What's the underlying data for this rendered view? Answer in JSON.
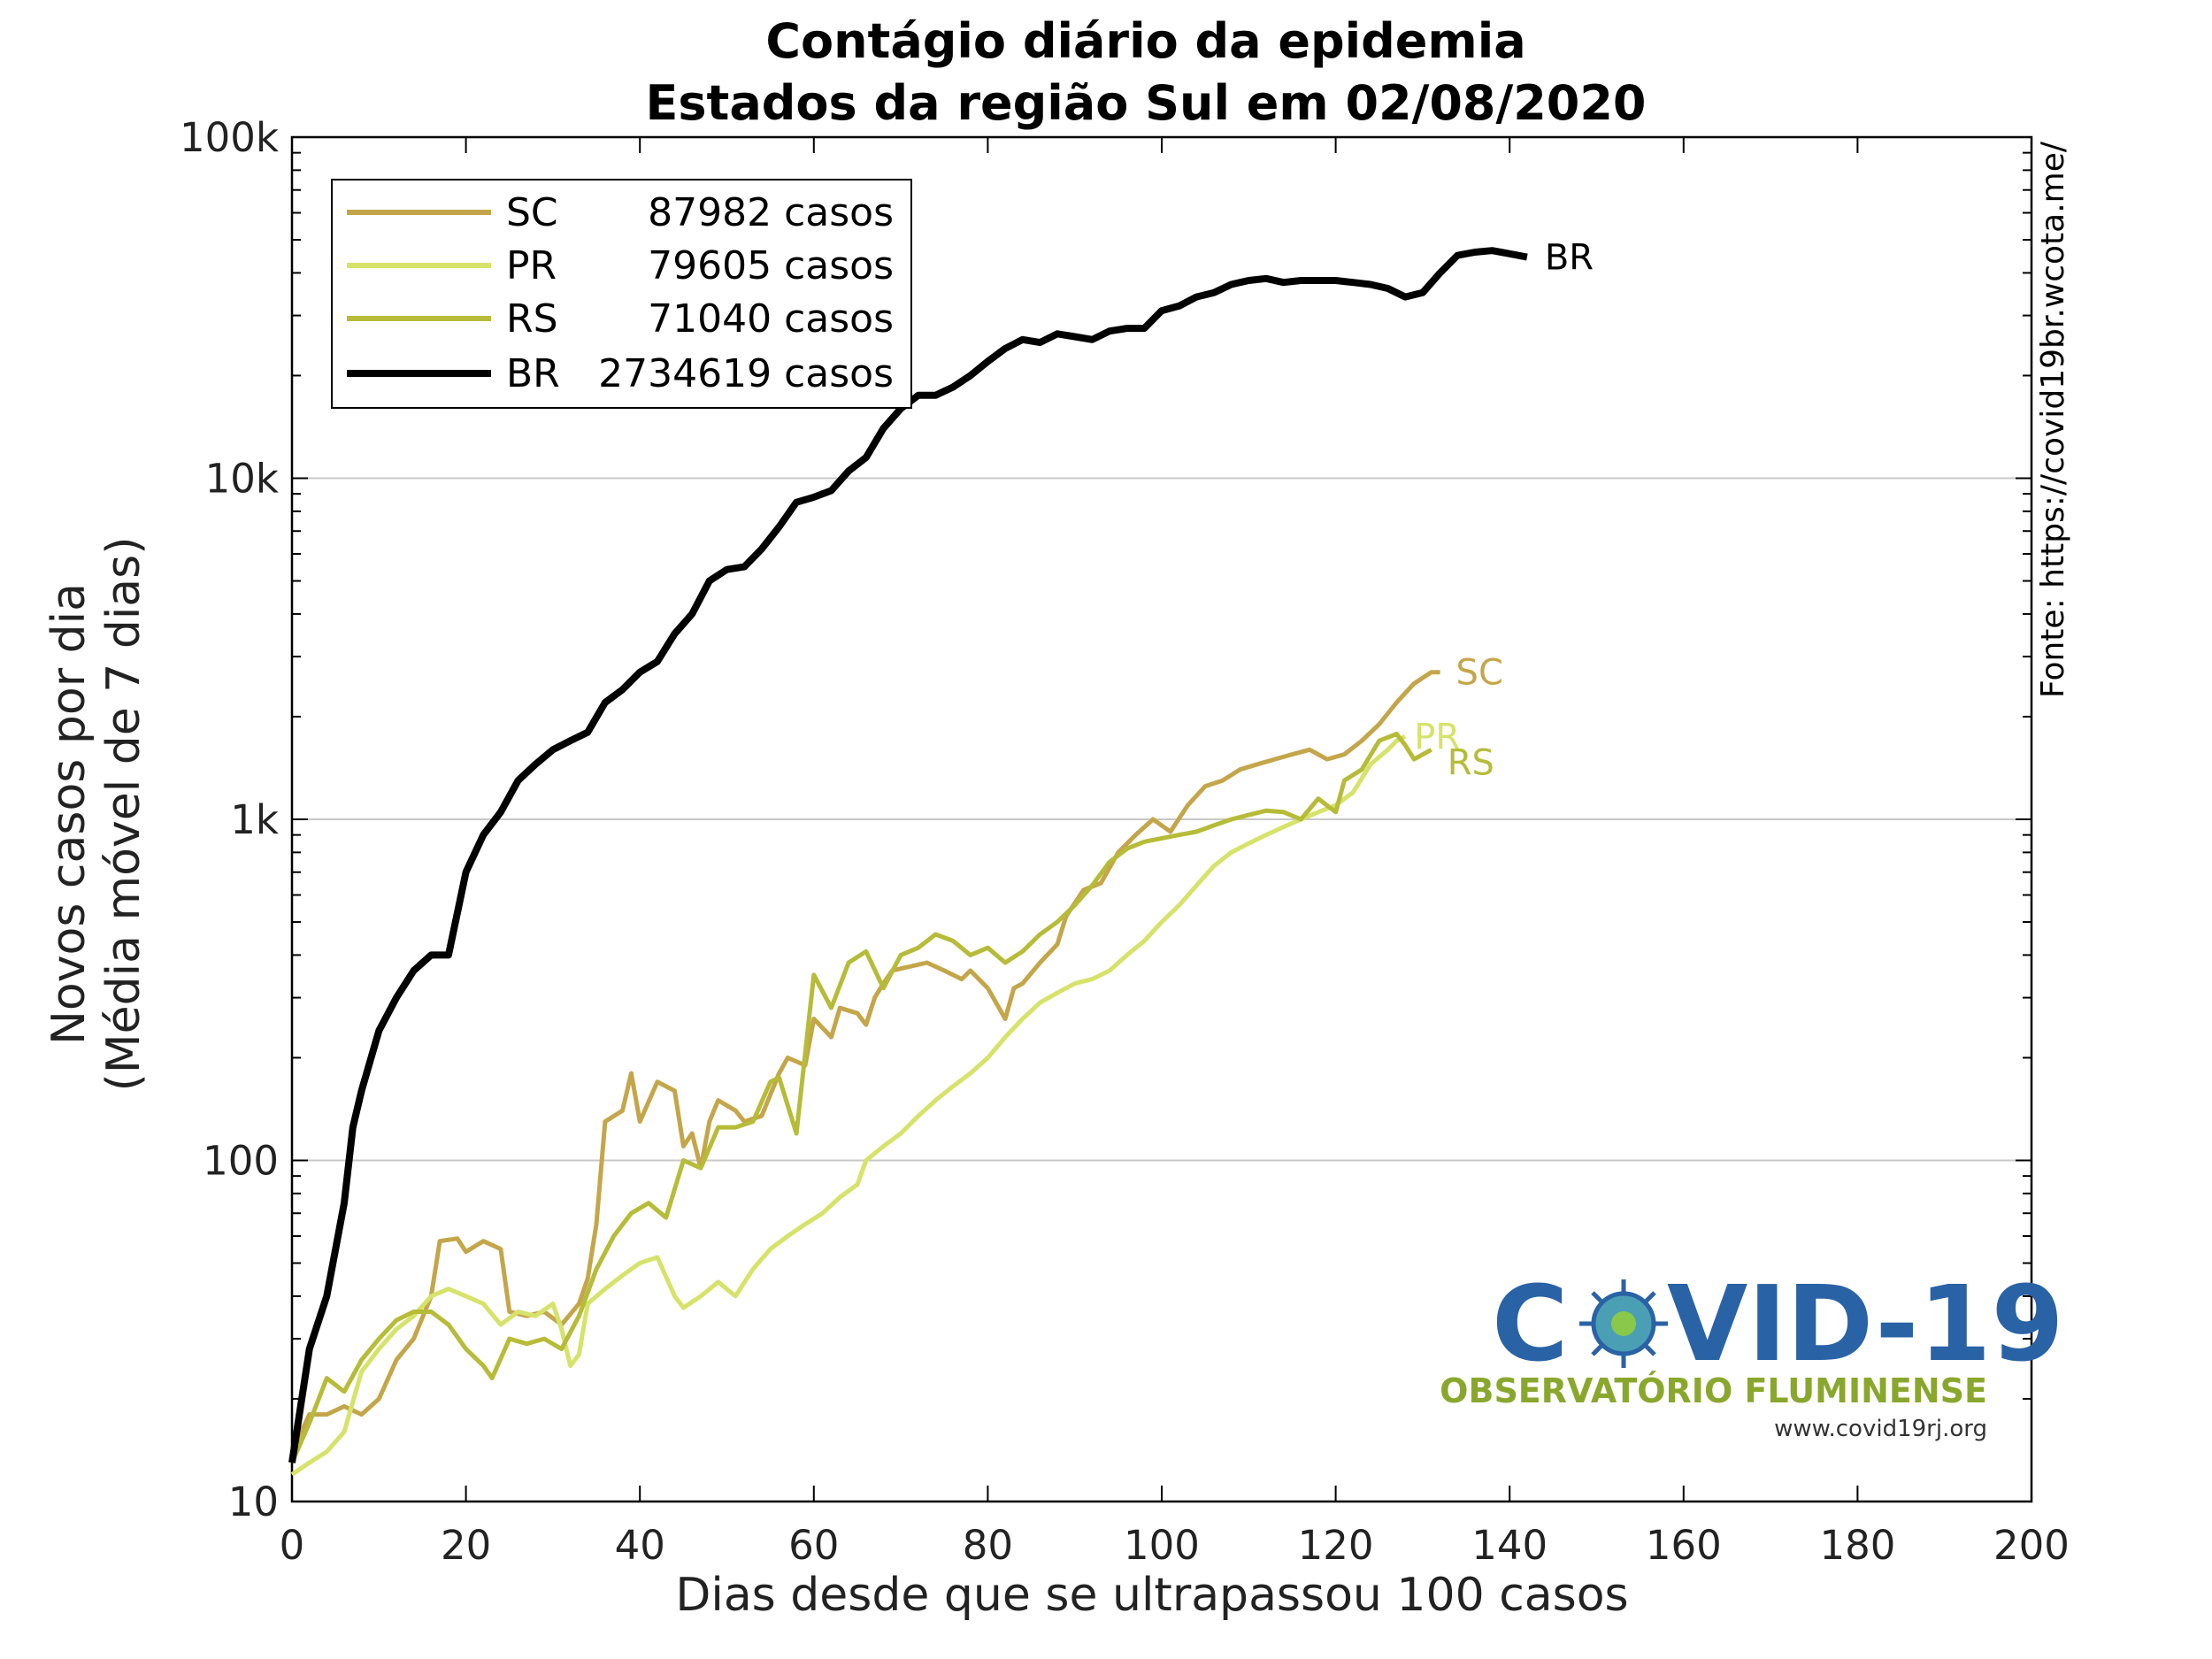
{
  "chart_data": {
    "type": "line",
    "title": "Contágio diário da epidemia",
    "subtitle": "Estados da região Sul em 02/08/2020",
    "xlabel": "Dias desde que se ultrapassou 100 casos",
    "ylabel_line1": "Novos casos por dia",
    "ylabel_line2": "(Média móvel de 7 dias)",
    "source": "Fonte: https://covid19br.wcota.me/",
    "xlim": [
      0,
      200
    ],
    "ylim": [
      10,
      100000
    ],
    "yscale": "log",
    "grid": "horizontal major",
    "legend_position": "top-left",
    "x_ticks": [
      "0",
      "20",
      "40",
      "60",
      "80",
      "100",
      "120",
      "140",
      "160",
      "180",
      "200"
    ],
    "y_ticks": [
      "10",
      "100",
      "1k",
      "10k",
      "100k"
    ],
    "series": [
      {
        "name": "SC",
        "legend_count": "87982 casos",
        "color": "#c4a64a",
        "end_label": "SC",
        "points": [
          [
            0,
            14
          ],
          [
            2,
            18
          ],
          [
            4,
            18
          ],
          [
            6,
            19
          ],
          [
            8,
            18
          ],
          [
            10,
            20
          ],
          [
            12,
            26
          ],
          [
            14,
            30
          ],
          [
            16,
            40
          ],
          [
            17,
            58
          ],
          [
            19,
            59
          ],
          [
            20,
            54
          ],
          [
            22,
            58
          ],
          [
            24,
            55
          ],
          [
            25,
            36
          ],
          [
            27,
            35
          ],
          [
            29,
            36
          ],
          [
            31,
            33
          ],
          [
            33,
            38
          ],
          [
            34,
            45
          ],
          [
            35,
            65
          ],
          [
            36,
            130
          ],
          [
            38,
            140
          ],
          [
            39,
            180
          ],
          [
            40,
            130
          ],
          [
            42,
            170
          ],
          [
            44,
            160
          ],
          [
            45,
            110
          ],
          [
            46,
            120
          ],
          [
            47,
            95
          ],
          [
            48,
            130
          ],
          [
            49,
            150
          ],
          [
            51,
            140
          ],
          [
            52,
            130
          ],
          [
            54,
            135
          ],
          [
            56,
            180
          ],
          [
            57,
            200
          ],
          [
            59,
            190
          ],
          [
            60,
            260
          ],
          [
            62,
            230
          ],
          [
            63,
            280
          ],
          [
            65,
            270
          ],
          [
            66,
            250
          ],
          [
            67,
            300
          ],
          [
            68,
            330
          ],
          [
            69,
            360
          ],
          [
            71,
            370
          ],
          [
            73,
            380
          ],
          [
            75,
            360
          ],
          [
            77,
            340
          ],
          [
            78,
            360
          ],
          [
            80,
            320
          ],
          [
            82,
            260
          ],
          [
            83,
            320
          ],
          [
            84,
            330
          ],
          [
            86,
            380
          ],
          [
            88,
            430
          ],
          [
            89,
            520
          ],
          [
            91,
            620
          ],
          [
            93,
            650
          ],
          [
            95,
            800
          ],
          [
            97,
            900
          ],
          [
            99,
            1000
          ],
          [
            101,
            920
          ],
          [
            103,
            1100
          ],
          [
            105,
            1250
          ],
          [
            107,
            1300
          ],
          [
            109,
            1400
          ],
          [
            111,
            1450
          ],
          [
            113,
            1500
          ],
          [
            115,
            1550
          ],
          [
            117,
            1600
          ],
          [
            119,
            1500
          ],
          [
            121,
            1550
          ],
          [
            123,
            1700
          ],
          [
            125,
            1900
          ],
          [
            127,
            2200
          ],
          [
            129,
            2500
          ],
          [
            131,
            2700
          ],
          [
            132,
            2700
          ]
        ]
      },
      {
        "name": "PR",
        "legend_count": "79605 casos",
        "color": "#d6e36a",
        "end_label": "PR",
        "points": [
          [
            0,
            12
          ],
          [
            2,
            13
          ],
          [
            4,
            14
          ],
          [
            6,
            16
          ],
          [
            8,
            24
          ],
          [
            10,
            28
          ],
          [
            12,
            32
          ],
          [
            14,
            35
          ],
          [
            16,
            40
          ],
          [
            18,
            42
          ],
          [
            20,
            40
          ],
          [
            22,
            38
          ],
          [
            24,
            33
          ],
          [
            26,
            36
          ],
          [
            28,
            35
          ],
          [
            30,
            38
          ],
          [
            31,
            32
          ],
          [
            32,
            25
          ],
          [
            33,
            27
          ],
          [
            34,
            38
          ],
          [
            36,
            42
          ],
          [
            38,
            46
          ],
          [
            40,
            50
          ],
          [
            42,
            52
          ],
          [
            44,
            40
          ],
          [
            45,
            37
          ],
          [
            47,
            40
          ],
          [
            49,
            44
          ],
          [
            51,
            40
          ],
          [
            53,
            48
          ],
          [
            55,
            55
          ],
          [
            57,
            60
          ],
          [
            59,
            65
          ],
          [
            61,
            70
          ],
          [
            63,
            78
          ],
          [
            65,
            85
          ],
          [
            66,
            100
          ],
          [
            68,
            110
          ],
          [
            70,
            120
          ],
          [
            72,
            135
          ],
          [
            74,
            150
          ],
          [
            76,
            165
          ],
          [
            78,
            180
          ],
          [
            80,
            200
          ],
          [
            82,
            230
          ],
          [
            84,
            260
          ],
          [
            86,
            290
          ],
          [
            88,
            310
          ],
          [
            90,
            330
          ],
          [
            92,
            340
          ],
          [
            94,
            360
          ],
          [
            96,
            400
          ],
          [
            98,
            440
          ],
          [
            100,
            500
          ],
          [
            102,
            560
          ],
          [
            104,
            640
          ],
          [
            106,
            730
          ],
          [
            108,
            800
          ],
          [
            110,
            850
          ],
          [
            112,
            900
          ],
          [
            114,
            950
          ],
          [
            116,
            1000
          ],
          [
            118,
            1050
          ],
          [
            120,
            1100
          ],
          [
            122,
            1200
          ],
          [
            124,
            1450
          ],
          [
            126,
            1600
          ],
          [
            127,
            1700
          ],
          [
            128,
            1750
          ]
        ]
      },
      {
        "name": "RS",
        "legend_count": "71040 casos",
        "color": "#b6bc38",
        "end_label": "RS",
        "points": [
          [
            0,
            13
          ],
          [
            2,
            17
          ],
          [
            4,
            23
          ],
          [
            6,
            21
          ],
          [
            8,
            26
          ],
          [
            10,
            30
          ],
          [
            12,
            34
          ],
          [
            14,
            36
          ],
          [
            16,
            36
          ],
          [
            18,
            33
          ],
          [
            20,
            28
          ],
          [
            22,
            25
          ],
          [
            23,
            23
          ],
          [
            25,
            30
          ],
          [
            27,
            29
          ],
          [
            29,
            30
          ],
          [
            31,
            28
          ],
          [
            33,
            35
          ],
          [
            35,
            48
          ],
          [
            37,
            60
          ],
          [
            39,
            70
          ],
          [
            41,
            75
          ],
          [
            43,
            68
          ],
          [
            45,
            100
          ],
          [
            47,
            95
          ],
          [
            49,
            125
          ],
          [
            51,
            125
          ],
          [
            53,
            130
          ],
          [
            55,
            170
          ],
          [
            56,
            175
          ],
          [
            58,
            120
          ],
          [
            60,
            350
          ],
          [
            62,
            280
          ],
          [
            64,
            380
          ],
          [
            66,
            410
          ],
          [
            68,
            320
          ],
          [
            70,
            400
          ],
          [
            72,
            420
          ],
          [
            74,
            460
          ],
          [
            76,
            440
          ],
          [
            78,
            400
          ],
          [
            80,
            420
          ],
          [
            82,
            380
          ],
          [
            84,
            410
          ],
          [
            86,
            460
          ],
          [
            88,
            500
          ],
          [
            90,
            560
          ],
          [
            92,
            640
          ],
          [
            94,
            750
          ],
          [
            96,
            820
          ],
          [
            98,
            860
          ],
          [
            100,
            880
          ],
          [
            102,
            900
          ],
          [
            104,
            920
          ],
          [
            106,
            960
          ],
          [
            108,
            1000
          ],
          [
            110,
            1030
          ],
          [
            112,
            1060
          ],
          [
            114,
            1050
          ],
          [
            116,
            1000
          ],
          [
            118,
            1150
          ],
          [
            120,
            1050
          ],
          [
            121,
            1300
          ],
          [
            123,
            1400
          ],
          [
            125,
            1700
          ],
          [
            127,
            1780
          ],
          [
            128,
            1650
          ],
          [
            129,
            1500
          ],
          [
            131,
            1600
          ]
        ]
      },
      {
        "name": "BR",
        "legend_count": "2734619 casos",
        "color": "#000000",
        "end_label": "BR",
        "points": [
          [
            0,
            13
          ],
          [
            2,
            28
          ],
          [
            4,
            40
          ],
          [
            6,
            75
          ],
          [
            7,
            125
          ],
          [
            8,
            160
          ],
          [
            10,
            240
          ],
          [
            12,
            300
          ],
          [
            14,
            360
          ],
          [
            16,
            400
          ],
          [
            18,
            400
          ],
          [
            20,
            700
          ],
          [
            22,
            900
          ],
          [
            24,
            1050
          ],
          [
            26,
            1300
          ],
          [
            28,
            1450
          ],
          [
            30,
            1600
          ],
          [
            32,
            1700
          ],
          [
            34,
            1800
          ],
          [
            36,
            2200
          ],
          [
            38,
            2400
          ],
          [
            40,
            2700
          ],
          [
            42,
            2900
          ],
          [
            44,
            3500
          ],
          [
            46,
            4000
          ],
          [
            48,
            5000
          ],
          [
            50,
            5400
          ],
          [
            52,
            5500
          ],
          [
            54,
            6200
          ],
          [
            56,
            7200
          ],
          [
            58,
            8500
          ],
          [
            60,
            8800
          ],
          [
            62,
            9200
          ],
          [
            64,
            10500
          ],
          [
            66,
            11500
          ],
          [
            68,
            14000
          ],
          [
            70,
            16000
          ],
          [
            72,
            17500
          ],
          [
            74,
            17500
          ],
          [
            76,
            18500
          ],
          [
            78,
            20000
          ],
          [
            80,
            22000
          ],
          [
            82,
            24000
          ],
          [
            84,
            25500
          ],
          [
            86,
            25000
          ],
          [
            88,
            26500
          ],
          [
            90,
            26000
          ],
          [
            92,
            25500
          ],
          [
            94,
            27000
          ],
          [
            96,
            27500
          ],
          [
            98,
            27500
          ],
          [
            100,
            31000
          ],
          [
            102,
            32000
          ],
          [
            104,
            34000
          ],
          [
            106,
            35000
          ],
          [
            108,
            37000
          ],
          [
            110,
            38000
          ],
          [
            112,
            38500
          ],
          [
            114,
            37500
          ],
          [
            116,
            38000
          ],
          [
            118,
            38000
          ],
          [
            120,
            38000
          ],
          [
            122,
            37500
          ],
          [
            124,
            37000
          ],
          [
            126,
            36000
          ],
          [
            128,
            34000
          ],
          [
            130,
            35000
          ],
          [
            132,
            40000
          ],
          [
            134,
            45000
          ],
          [
            136,
            46000
          ],
          [
            138,
            46500
          ],
          [
            140,
            45500
          ],
          [
            142,
            44500
          ]
        ]
      }
    ]
  },
  "logo": {
    "text_left": "C",
    "text_right": "VID-19",
    "subtitle": "OBSERVATÓRIO FLUMINENSE",
    "url": "www.covid19rj.org"
  }
}
